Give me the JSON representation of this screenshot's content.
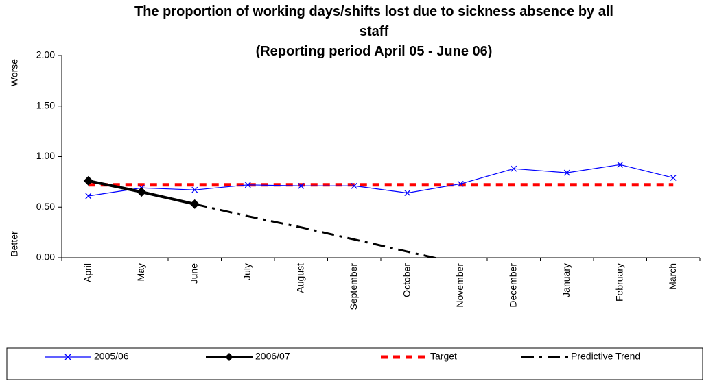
{
  "chart_data": {
    "type": "line",
    "title": "The proportion of working days/shifts lost due to sickness absence by all staff",
    "subtitle": "(Reporting period April 05 - June 06)",
    "y_label_top": "Worse",
    "y_label_bottom": "Better",
    "categories": [
      "April",
      "May",
      "June",
      "July",
      "August",
      "September",
      "October",
      "November",
      "December",
      "January",
      "February",
      "March"
    ],
    "series": [
      {
        "name": "2005/06",
        "color": "#0000ff",
        "marker": "x",
        "dash": "solid",
        "values": [
          0.61,
          0.69,
          0.67,
          0.72,
          0.71,
          0.71,
          0.64,
          0.73,
          0.88,
          0.84,
          0.92,
          0.79
        ]
      },
      {
        "name": "2006/07",
        "color": "#000000",
        "marker": "diamond",
        "dash": "solid",
        "values": [
          0.76,
          0.65,
          0.53,
          null,
          null,
          null,
          null,
          null,
          null,
          null,
          null,
          null
        ]
      },
      {
        "name": "Target",
        "color": "#ff0000",
        "marker": "none",
        "dash": "dashed",
        "values": [
          0.72,
          0.72,
          0.72,
          0.72,
          0.72,
          0.72,
          0.72,
          0.72,
          0.72,
          0.72,
          0.72,
          0.72
        ]
      },
      {
        "name": "Predictive Trend",
        "color": "#000000",
        "marker": "none",
        "dash": "dashdot",
        "values": [
          null,
          null,
          0.53,
          0.41,
          0.3,
          0.18,
          0.06,
          -0.06,
          null,
          null,
          null,
          null
        ]
      }
    ],
    "ylim": [
      0,
      2
    ],
    "yticks": [
      {
        "value": 0,
        "label": "0.00"
      },
      {
        "value": 0.5,
        "label": "0.50"
      },
      {
        "value": 1,
        "label": "1.00"
      },
      {
        "value": 1.5,
        "label": "1.50"
      },
      {
        "value": 2,
        "label": "2.00"
      }
    ],
    "grid": false,
    "legend": "bottom"
  }
}
